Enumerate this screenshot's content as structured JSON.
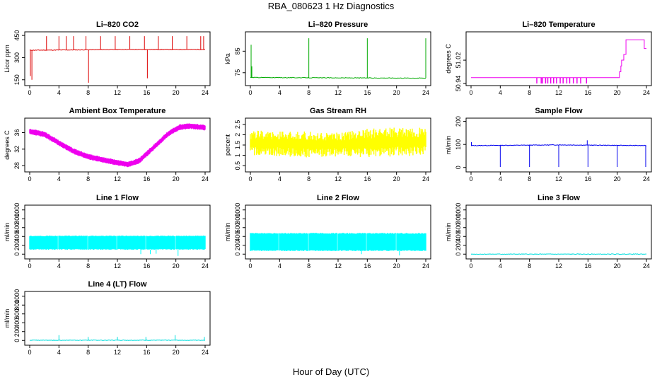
{
  "title": "RBA_080623  1 Hz Diagnostics",
  "xaxis_label": "Hour of Day (UTC)",
  "chart_data": [
    {
      "type": "line",
      "title": "Li-820 CO2",
      "ylabel": "Licor ppm",
      "color": "#dd0000",
      "xlim": [
        0,
        24
      ],
      "ylim": [
        125,
        460
      ],
      "xticks": [
        0,
        4,
        8,
        12,
        16,
        20,
        24
      ],
      "yticks": [
        150,
        300,
        450
      ],
      "baseline": [
        [
          0,
          350
        ],
        [
          6,
          352
        ],
        [
          12,
          355
        ],
        [
          18,
          355
        ],
        [
          24,
          355
        ]
      ],
      "spikes": [
        [
          0.1,
          175
        ],
        [
          0.3,
          150
        ],
        [
          2.3,
          445
        ],
        [
          4,
          445
        ],
        [
          5,
          445
        ],
        [
          6,
          445
        ],
        [
          7.7,
          445
        ],
        [
          8.05,
          130
        ],
        [
          9.7,
          445
        ],
        [
          11.7,
          445
        ],
        [
          13.7,
          445
        ],
        [
          15.7,
          445
        ],
        [
          16.1,
          160
        ],
        [
          17.6,
          445
        ],
        [
          19.5,
          445
        ],
        [
          21.5,
          445
        ],
        [
          23.4,
          445
        ],
        [
          23.8,
          445
        ]
      ]
    },
    {
      "type": "line",
      "title": "Li-820 Pressure",
      "ylabel": "kPa",
      "color": "#00aa00",
      "xlim": [
        0,
        24
      ],
      "ylim": [
        70,
        93
      ],
      "xticks": [
        0,
        4,
        8,
        12,
        16,
        20,
        24
      ],
      "yticks": [
        75,
        85
      ],
      "baseline": [
        [
          0,
          72.8
        ],
        [
          12,
          72.6
        ],
        [
          24,
          72.5
        ]
      ],
      "spikes": [
        [
          0.1,
          88
        ],
        [
          0.2,
          78
        ],
        [
          8,
          91
        ],
        [
          16,
          91
        ],
        [
          24,
          91
        ]
      ]
    },
    {
      "type": "step",
      "title": "Li-820 Temperature",
      "ylabel": "degrees C",
      "color": "#ee00ee",
      "xlim": [
        0,
        24
      ],
      "ylim": [
        50.94,
        51.11
      ],
      "xticks": [
        0,
        4,
        8,
        12,
        16,
        20,
        24
      ],
      "yticks": [
        50.94,
        51.02
      ],
      "ytick_labels": [
        "50.94",
        "51.02"
      ],
      "baseline": [
        [
          0,
          50.96
        ],
        [
          20,
          50.96
        ],
        [
          20.3,
          50.98
        ],
        [
          20.5,
          51.0
        ],
        [
          20.6,
          51.02
        ],
        [
          20.9,
          51.04
        ],
        [
          21.2,
          51.09
        ],
        [
          21.5,
          51.09
        ],
        [
          23.5,
          51.09
        ],
        [
          23.7,
          51.06
        ],
        [
          24,
          51.06
        ]
      ],
      "dips": [
        9,
        9.6,
        9.8,
        10.2,
        10.5,
        10.9,
        11.3,
        11.7,
        12.2,
        12.6,
        13.1,
        13.5,
        14,
        14.5,
        15,
        15.8
      ]
    },
    {
      "type": "band",
      "title": "Ambient Box Temperature",
      "ylabel": "degrees C",
      "color": "#ee00ee",
      "xlim": [
        0,
        24
      ],
      "ylim": [
        27,
        39
      ],
      "xticks": [
        0,
        4,
        8,
        12,
        16,
        20,
        24
      ],
      "yticks": [
        28,
        32,
        36
      ],
      "center": [
        [
          0,
          36.3
        ],
        [
          2,
          35.6
        ],
        [
          4,
          33.5
        ],
        [
          6,
          31.5
        ],
        [
          8,
          30.2
        ],
        [
          10,
          29.4
        ],
        [
          12,
          28.7
        ],
        [
          13.5,
          28.3
        ],
        [
          15,
          29.2
        ],
        [
          17,
          32.5
        ],
        [
          19,
          35.8
        ],
        [
          20.5,
          37.3
        ],
        [
          22,
          37.6
        ],
        [
          24,
          37.2
        ]
      ],
      "halfwidth": 0.7
    },
    {
      "type": "band",
      "title": "Gas Stream RH",
      "ylabel": "percent",
      "color": "#ffff00",
      "xlim": [
        0,
        24
      ],
      "ylim": [
        0.3,
        2.7
      ],
      "xticks": [
        0,
        4,
        8,
        12,
        16,
        20,
        24
      ],
      "yticks": [
        0.5,
        1.0,
        1.5,
        2.0,
        2.5
      ],
      "center": [
        [
          0,
          1.6
        ],
        [
          24,
          1.6
        ]
      ],
      "upper": [
        [
          0,
          2.2
        ],
        [
          4,
          2.2
        ],
        [
          8,
          2.15
        ],
        [
          12,
          2.1
        ],
        [
          16,
          2.3
        ],
        [
          20,
          2.35
        ],
        [
          24,
          2.35
        ]
      ],
      "lower": [
        [
          0,
          1.0
        ],
        [
          4,
          0.95
        ],
        [
          8,
          0.9
        ],
        [
          12,
          0.95
        ],
        [
          16,
          0.9
        ],
        [
          20,
          0.95
        ],
        [
          24,
          1.0
        ]
      ]
    },
    {
      "type": "line",
      "title": "Sample Flow",
      "ylabel": "ml/min",
      "color": "#0000ee",
      "xlim": [
        0,
        24
      ],
      "ylim": [
        -10,
        205
      ],
      "xticks": [
        0,
        4,
        8,
        12,
        16,
        20,
        24
      ],
      "yticks": [
        0,
        100,
        200
      ],
      "baseline": [
        [
          0,
          95
        ],
        [
          12,
          98
        ],
        [
          24,
          95
        ]
      ],
      "spikes": [
        [
          0.05,
          110
        ],
        [
          4,
          2
        ],
        [
          8,
          2
        ],
        [
          12,
          2
        ],
        [
          15.9,
          118
        ],
        [
          16,
          2
        ],
        [
          20,
          2
        ],
        [
          23.9,
          2
        ]
      ]
    },
    {
      "type": "band",
      "title": "Line 1 Flow",
      "ylabel": "ml/min",
      "color": "#00ffff",
      "xlim": [
        0,
        24
      ],
      "ylim": [
        -60,
        1060
      ],
      "xticks": [
        0,
        4,
        8,
        12,
        16,
        20,
        24
      ],
      "yticks": [
        0,
        200,
        400,
        600,
        800,
        1000
      ],
      "upper": [
        [
          0,
          420
        ],
        [
          24,
          420
        ]
      ],
      "lower": [
        [
          0,
          100
        ],
        [
          24,
          100
        ]
      ],
      "gaps": [
        3.9,
        7.9,
        11.9,
        15.9,
        19.9
      ],
      "spikes": [
        [
          15.2,
          0
        ],
        [
          16.5,
          0
        ],
        [
          17.3,
          10
        ],
        [
          20.3,
          -40
        ]
      ]
    },
    {
      "type": "band",
      "title": "Line 2 Flow",
      "ylabel": "ml/min",
      "color": "#00ffff",
      "xlim": [
        0,
        24
      ],
      "ylim": [
        -60,
        1060
      ],
      "xticks": [
        0,
        4,
        8,
        12,
        16,
        20,
        24
      ],
      "yticks": [
        0,
        200,
        400,
        600,
        800,
        1000
      ],
      "upper": [
        [
          0,
          480
        ],
        [
          24,
          480
        ]
      ],
      "lower": [
        [
          0,
          70
        ],
        [
          24,
          70
        ]
      ],
      "gaps": [
        3.9,
        7.9,
        11.9,
        15.9,
        19.9
      ],
      "spikes": [
        [
          15.2,
          0
        ],
        [
          20.4,
          -30
        ]
      ]
    },
    {
      "type": "line",
      "title": "Line 3 Flow",
      "ylabel": "ml/min",
      "color": "#00dddd",
      "xlim": [
        0,
        24
      ],
      "ylim": [
        -60,
        1060
      ],
      "xticks": [
        0,
        4,
        8,
        12,
        16,
        20,
        24
      ],
      "yticks": [
        0,
        200,
        400,
        600,
        800,
        1000
      ],
      "baseline": [
        [
          0,
          0
        ],
        [
          24,
          0
        ]
      ],
      "spikes": []
    },
    {
      "type": "line",
      "title": "Line 4 (LT) Flow",
      "ylabel": "ml/min",
      "color": "#00dddd",
      "xlim": [
        0,
        24
      ],
      "ylim": [
        -60,
        1060
      ],
      "xticks": [
        0,
        4,
        8,
        12,
        16,
        20,
        24
      ],
      "yticks": [
        0,
        200,
        400,
        600,
        800,
        1000
      ],
      "baseline": [
        [
          0,
          5
        ],
        [
          24,
          5
        ]
      ],
      "spikes": [
        [
          4,
          120
        ],
        [
          8,
          80
        ],
        [
          12,
          80
        ],
        [
          15.9,
          80
        ],
        [
          19.9,
          120
        ],
        [
          23.9,
          80
        ]
      ]
    }
  ]
}
